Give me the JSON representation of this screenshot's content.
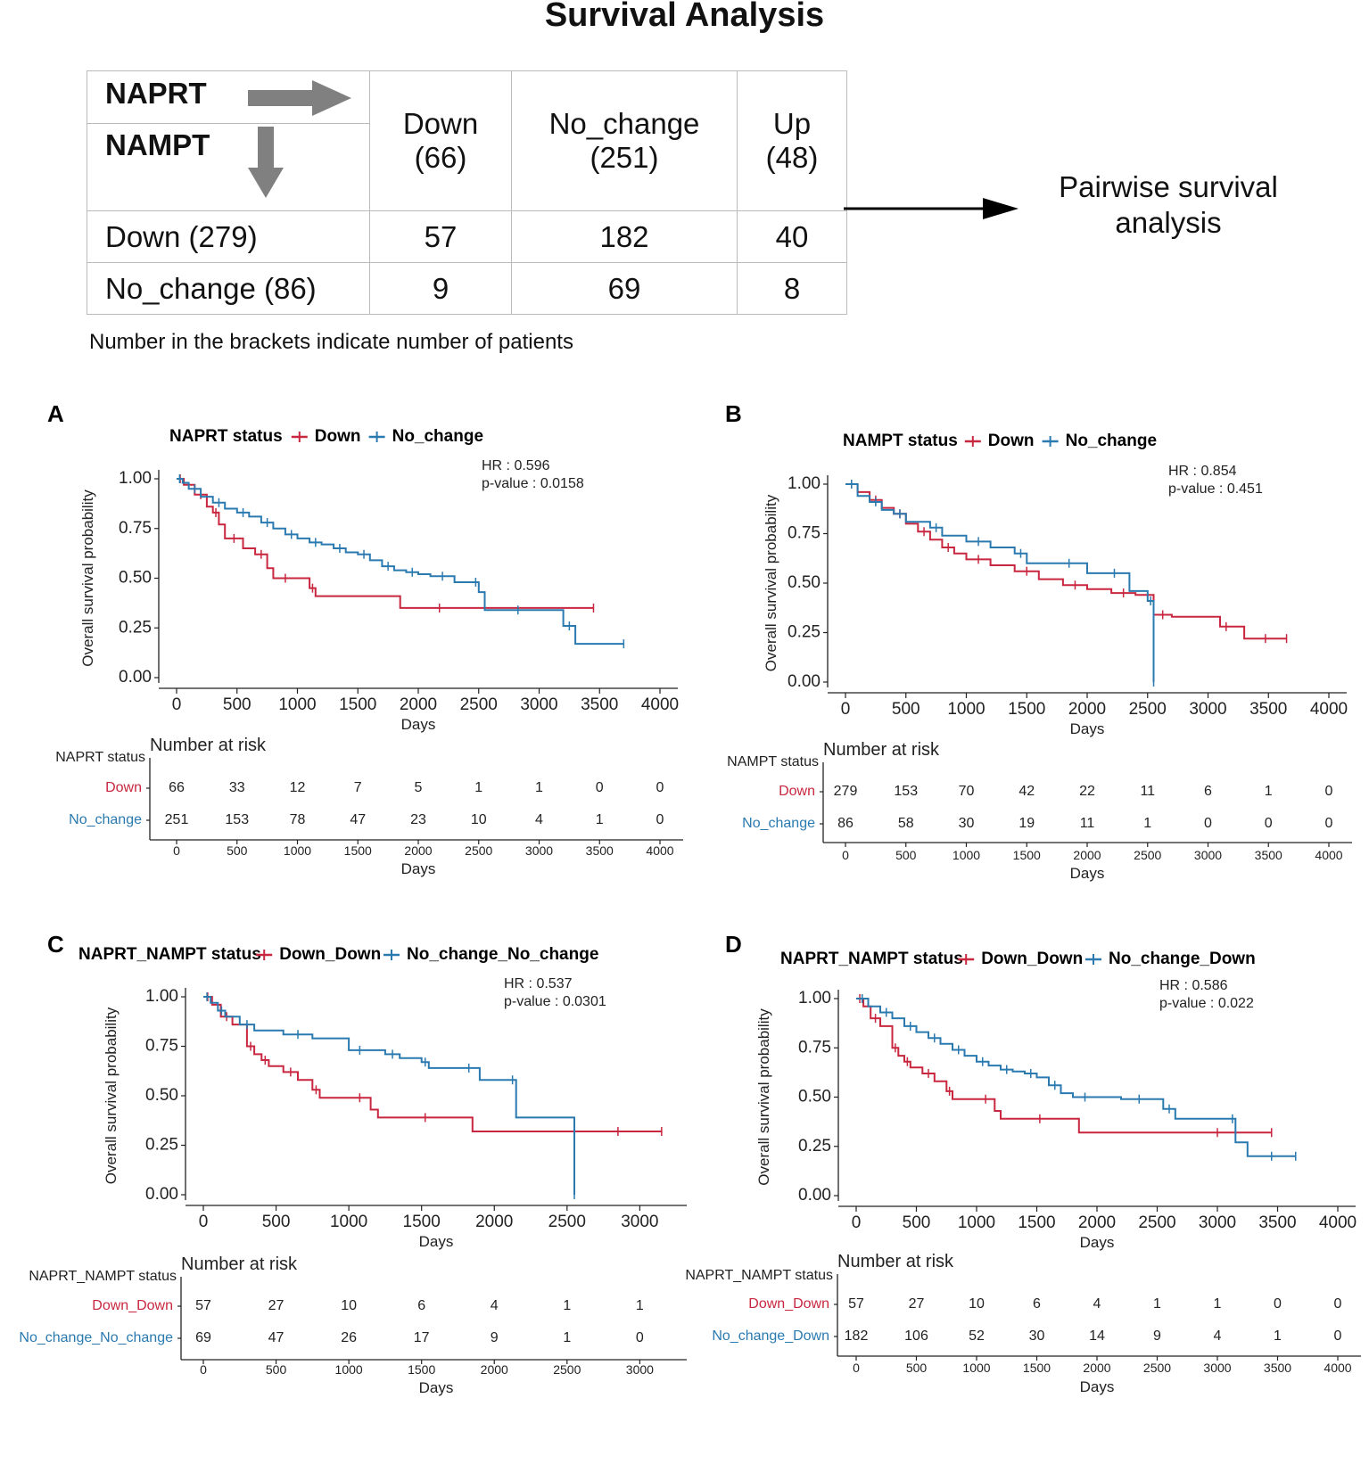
{
  "title": "Survival Analysis",
  "summary_table": {
    "corner_top": "NAPRT",
    "corner_bottom": "NAMPT",
    "columns": [
      {
        "line1": "Down",
        "line2": "(66)"
      },
      {
        "line1": "No_change",
        "line2": "(251)"
      },
      {
        "line1": "Up",
        "line2": "(48)"
      }
    ],
    "rows": [
      {
        "label": "Down (279)",
        "cells": [
          "57",
          "182",
          "40"
        ]
      },
      {
        "label": "No_change (86)",
        "cells": [
          "9",
          "69",
          "8"
        ]
      }
    ],
    "footnote": "Number in the brackets indicate number of patients"
  },
  "pairwise": {
    "line1": "Pairwise survival",
    "line2": "analysis"
  },
  "colors": {
    "down": "#c8273f",
    "other": "#2a7ab0",
    "axis": "#222222"
  },
  "chart_data": [
    {
      "type": "line",
      "panel_label": "A",
      "legend_title": "NAPRT status",
      "hr": "HR : 0.596",
      "pvalue": "p-value : 0.0158",
      "xlabel": "Days",
      "ylabel": "Overall survival probability",
      "xlim": [
        0,
        4000
      ],
      "ylim": [
        0,
        1
      ],
      "x_ticks": [
        "0",
        "500",
        "1000",
        "1500",
        "2000",
        "2500",
        "3000",
        "3500",
        "4000"
      ],
      "y_ticks": [
        "0.00",
        "0.25",
        "0.50",
        "0.75",
        "1.00"
      ],
      "risk_title": "Number at risk",
      "risk_x": [
        0,
        500,
        1000,
        1500,
        2000,
        2500,
        3000,
        3500,
        4000
      ],
      "series": [
        {
          "name": "Down",
          "color": "down",
          "x": [
            0,
            60,
            150,
            250,
            300,
            350,
            400,
            550,
            650,
            750,
            800,
            1000,
            1100,
            1150,
            1850,
            2500,
            3450
          ],
          "y": [
            1.0,
            0.97,
            0.92,
            0.86,
            0.83,
            0.77,
            0.7,
            0.65,
            0.62,
            0.55,
            0.5,
            0.5,
            0.45,
            0.41,
            0.35,
            0.35,
            0.35
          ],
          "risk": [
            "66",
            "33",
            "12",
            "7",
            "5",
            "1",
            "1",
            "0",
            "0"
          ]
        },
        {
          "name": "No_change",
          "color": "other",
          "x": [
            0,
            50,
            100,
            200,
            300,
            400,
            500,
            600,
            700,
            800,
            900,
            1000,
            1100,
            1200,
            1300,
            1400,
            1500,
            1600,
            1700,
            1800,
            1900,
            2000,
            2100,
            2300,
            2450,
            2500,
            2550,
            3100,
            3200,
            3300,
            3700
          ],
          "y": [
            1.0,
            0.98,
            0.95,
            0.91,
            0.88,
            0.85,
            0.83,
            0.81,
            0.78,
            0.75,
            0.72,
            0.7,
            0.68,
            0.67,
            0.65,
            0.63,
            0.62,
            0.59,
            0.56,
            0.54,
            0.53,
            0.52,
            0.51,
            0.48,
            0.48,
            0.43,
            0.34,
            0.34,
            0.26,
            0.17,
            0.17
          ],
          "risk": [
            "251",
            "153",
            "78",
            "47",
            "23",
            "10",
            "4",
            "1",
            "0"
          ]
        }
      ]
    },
    {
      "type": "line",
      "panel_label": "B",
      "legend_title": "NAMPT status",
      "hr": "HR : 0.854",
      "pvalue": "p-value : 0.451",
      "xlabel": "Days",
      "ylabel": "Overall survival probability",
      "xlim": [
        0,
        4000
      ],
      "ylim": [
        0,
        1
      ],
      "x_ticks": [
        "0",
        "500",
        "1000",
        "1500",
        "2000",
        "2500",
        "3000",
        "3500",
        "4000"
      ],
      "y_ticks": [
        "0.00",
        "0.25",
        "0.50",
        "0.75",
        "1.00"
      ],
      "risk_title": "Number at risk",
      "risk_x": [
        0,
        500,
        1000,
        1500,
        2000,
        2500,
        3000,
        3500,
        4000
      ],
      "series": [
        {
          "name": "Down",
          "color": "down",
          "x": [
            0,
            100,
            200,
            300,
            400,
            500,
            600,
            700,
            800,
            900,
            1000,
            1200,
            1400,
            1600,
            1800,
            2000,
            2200,
            2400,
            2550,
            2700,
            3100,
            3200,
            3300,
            3650
          ],
          "y": [
            1.0,
            0.96,
            0.92,
            0.88,
            0.85,
            0.8,
            0.76,
            0.72,
            0.68,
            0.65,
            0.62,
            0.59,
            0.56,
            0.52,
            0.49,
            0.47,
            0.45,
            0.44,
            0.34,
            0.33,
            0.28,
            0.28,
            0.22,
            0.22
          ],
          "risk": [
            "279",
            "153",
            "70",
            "42",
            "22",
            "11",
            "6",
            "1",
            "0"
          ]
        },
        {
          "name": "No_change",
          "color": "other",
          "x": [
            0,
            100,
            200,
            300,
            400,
            500,
            700,
            800,
            1000,
            1200,
            1400,
            1500,
            1700,
            2000,
            2100,
            2350,
            2500,
            2550
          ],
          "y": [
            1.0,
            0.94,
            0.91,
            0.87,
            0.85,
            0.81,
            0.78,
            0.74,
            0.71,
            0.68,
            0.65,
            0.6,
            0.6,
            0.55,
            0.55,
            0.46,
            0.41,
            0.0
          ],
          "risk": [
            "86",
            "58",
            "30",
            "19",
            "11",
            "1",
            "0",
            "0",
            "0"
          ]
        }
      ]
    },
    {
      "type": "line",
      "panel_label": "C",
      "legend_title": "NAPRT_NAMPT status",
      "hr": "HR : 0.537",
      "pvalue": "p-value : 0.0301",
      "xlabel": "Days",
      "ylabel": "Overall survival probability",
      "xlim": [
        0,
        3200
      ],
      "ylim": [
        0,
        1
      ],
      "x_ticks": [
        "0",
        "500",
        "1000",
        "1500",
        "2000",
        "2500",
        "3000"
      ],
      "y_ticks": [
        "0.00",
        "0.25",
        "0.50",
        "0.75",
        "1.00"
      ],
      "risk_title": "Number at risk",
      "risk_x": [
        0,
        500,
        1000,
        1500,
        2000,
        2500,
        3000
      ],
      "series": [
        {
          "name": "Down_Down",
          "color": "down",
          "x": [
            0,
            60,
            120,
            200,
            300,
            350,
            400,
            450,
            550,
            650,
            750,
            800,
            1000,
            1150,
            1200,
            1850,
            2550,
            3150
          ],
          "y": [
            1.0,
            0.96,
            0.9,
            0.86,
            0.75,
            0.71,
            0.68,
            0.65,
            0.62,
            0.58,
            0.53,
            0.49,
            0.49,
            0.43,
            0.39,
            0.32,
            0.32,
            0.32
          ],
          "risk": [
            "57",
            "27",
            "10",
            "6",
            "4",
            "1",
            "1"
          ]
        },
        {
          "name": "No_change_No_change",
          "color": "other",
          "x": [
            0,
            50,
            100,
            150,
            250,
            350,
            550,
            750,
            1000,
            1150,
            1250,
            1350,
            1500,
            1550,
            1750,
            1900,
            2100,
            2150,
            2550
          ],
          "y": [
            1.0,
            0.97,
            0.93,
            0.9,
            0.86,
            0.83,
            0.81,
            0.79,
            0.73,
            0.73,
            0.71,
            0.69,
            0.67,
            0.64,
            0.64,
            0.58,
            0.58,
            0.39,
            0.0
          ],
          "risk": [
            "69",
            "47",
            "26",
            "17",
            "9",
            "1",
            "0"
          ]
        }
      ]
    },
    {
      "type": "line",
      "panel_label": "D",
      "legend_title": "NAPRT_NAMPT status",
      "hr": "HR : 0.586",
      "pvalue": "p-value : 0.022",
      "xlabel": "Days",
      "ylabel": "Overall survival probability",
      "xlim": [
        0,
        4000
      ],
      "ylim": [
        0,
        1
      ],
      "x_ticks": [
        "0",
        "500",
        "1000",
        "1500",
        "2000",
        "2500",
        "3000",
        "3500",
        "4000"
      ],
      "y_ticks": [
        "0.00",
        "0.25",
        "0.50",
        "0.75",
        "1.00"
      ],
      "risk_title": "Number at risk",
      "risk_x": [
        0,
        500,
        1000,
        1500,
        2000,
        2500,
        3000,
        3500,
        4000
      ],
      "series": [
        {
          "name": "Down_Down",
          "color": "down",
          "x": [
            0,
            60,
            120,
            200,
            300,
            350,
            400,
            450,
            550,
            650,
            750,
            800,
            1000,
            1150,
            1200,
            1850,
            2550,
            3450
          ],
          "y": [
            1.0,
            0.96,
            0.9,
            0.86,
            0.75,
            0.71,
            0.68,
            0.65,
            0.62,
            0.58,
            0.53,
            0.49,
            0.49,
            0.43,
            0.39,
            0.32,
            0.32,
            0.32
          ],
          "risk": [
            "57",
            "27",
            "10",
            "6",
            "4",
            "1",
            "1",
            "0",
            "0"
          ]
        },
        {
          "name": "No_change_Down",
          "color": "other",
          "x": [
            0,
            100,
            200,
            300,
            400,
            500,
            600,
            700,
            800,
            900,
            1000,
            1100,
            1200,
            1300,
            1400,
            1500,
            1600,
            1700,
            1800,
            2000,
            2200,
            2500,
            2550,
            2650,
            3100,
            3150,
            3250,
            3650
          ],
          "y": [
            1.0,
            0.96,
            0.93,
            0.9,
            0.86,
            0.83,
            0.8,
            0.77,
            0.74,
            0.71,
            0.68,
            0.66,
            0.64,
            0.63,
            0.62,
            0.6,
            0.56,
            0.52,
            0.5,
            0.5,
            0.49,
            0.49,
            0.44,
            0.39,
            0.39,
            0.27,
            0.2,
            0.2
          ],
          "risk": [
            "182",
            "106",
            "52",
            "30",
            "14",
            "9",
            "4",
            "1",
            "0"
          ]
        }
      ]
    }
  ]
}
